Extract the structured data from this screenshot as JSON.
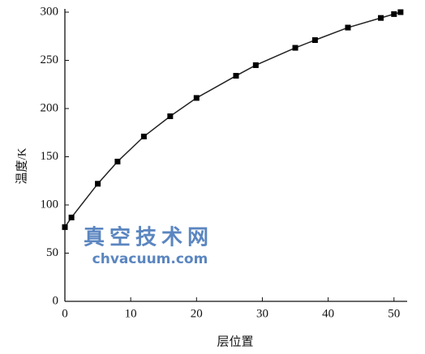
{
  "chart_data": {
    "type": "line",
    "x_label": "层位置",
    "y_label": "温度/K",
    "annotations": [
      "真空技术网",
      "chvacuum.com"
    ],
    "x": [
      0,
      1,
      5,
      8,
      12,
      16,
      20,
      26,
      29,
      35,
      38,
      43,
      48,
      50,
      51
    ],
    "series": [
      {
        "color": "#222222",
        "values": [
          77,
          87,
          122,
          145,
          171,
          192,
          211,
          234,
          245,
          263,
          271,
          284,
          294,
          298,
          300
        ]
      }
    ],
    "xlim": [
      0,
      52
    ],
    "xticks": [
      0,
      10,
      20,
      30,
      40,
      50
    ],
    "ylim": [
      0,
      300
    ],
    "yticks": [
      0,
      50,
      100,
      150,
      200,
      250,
      300
    ]
  }
}
